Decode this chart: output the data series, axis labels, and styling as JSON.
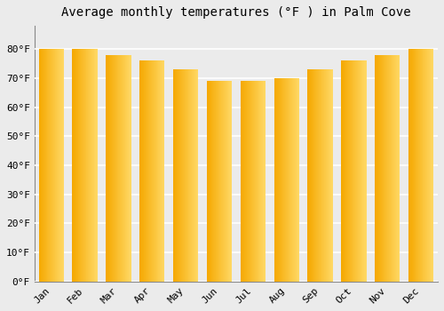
{
  "title": "Average monthly temperatures (°F ) in Palm Cove",
  "months": [
    "Jan",
    "Feb",
    "Mar",
    "Apr",
    "May",
    "Jun",
    "Jul",
    "Aug",
    "Sep",
    "Oct",
    "Nov",
    "Dec"
  ],
  "values": [
    80,
    80,
    78,
    76,
    73,
    69,
    69,
    70,
    73,
    76,
    78,
    80
  ],
  "bar_color_left": "#F5A800",
  "bar_color_right": "#FFD966",
  "ylim": [
    0,
    88
  ],
  "yticks": [
    0,
    10,
    20,
    30,
    40,
    50,
    60,
    70,
    80
  ],
  "ytick_labels": [
    "0°F",
    "10°F",
    "20°F",
    "30°F",
    "40°F",
    "50°F",
    "60°F",
    "70°F",
    "80°F"
  ],
  "background_color": "#ebebeb",
  "grid_color": "#ffffff",
  "title_fontsize": 10,
  "tick_fontsize": 8
}
